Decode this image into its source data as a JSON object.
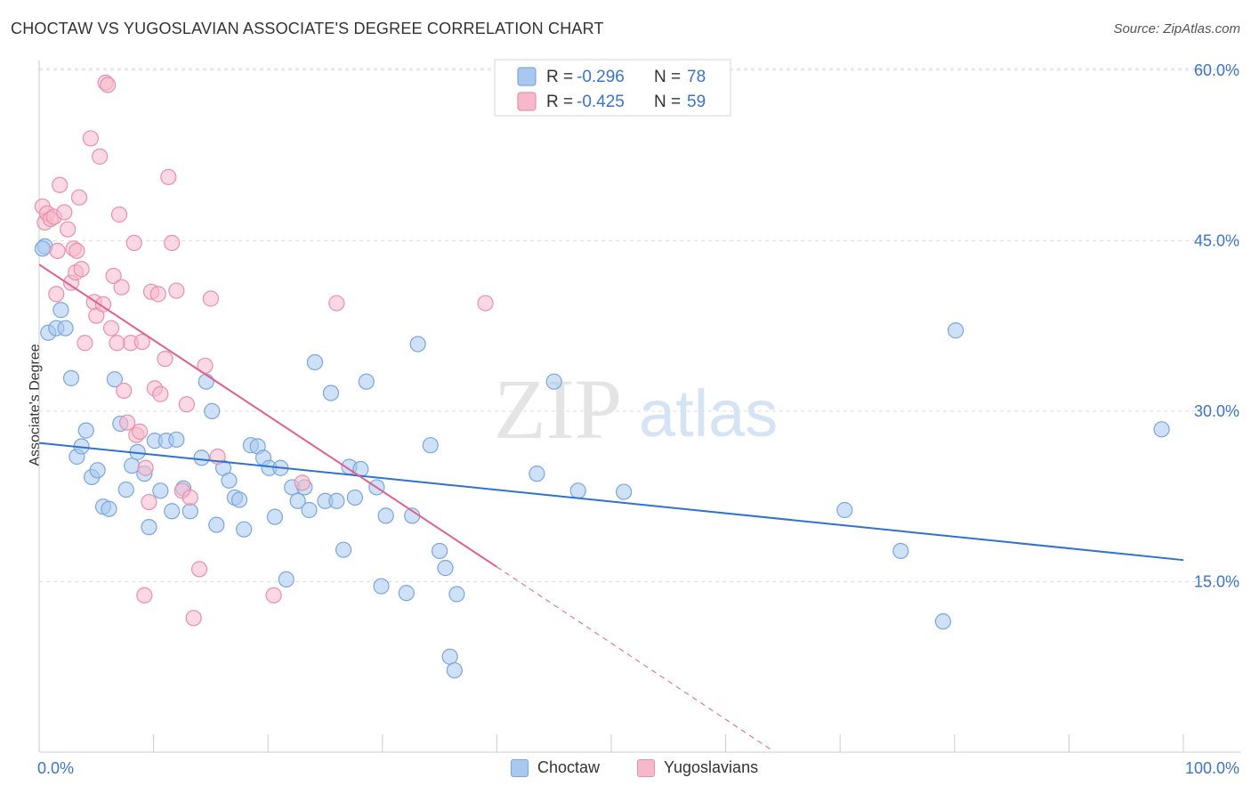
{
  "title": "CHOCTAW VS YUGOSLAVIAN ASSOCIATE'S DEGREE CORRELATION CHART",
  "source": "Source: ZipAtlas.com",
  "watermark": {
    "zip": "ZIP",
    "atlas": "atlas"
  },
  "legend": {
    "r_label": "R =",
    "n_label": "N =",
    "rows": [
      {
        "r": "-0.296",
        "n": "78"
      },
      {
        "r": "-0.425",
        "n": "59"
      }
    ]
  },
  "colors": {
    "choctaw_fill": "#a8c8f0",
    "choctaw_stroke": "#7aa6dc",
    "choctaw_line": "#2f72d0",
    "yugo_fill": "#f8b8cc",
    "yugo_stroke": "#e890ac",
    "yugo_line": "#e0608c",
    "value_blue": "#3a74c8",
    "grid": "#dddddd"
  },
  "chart_data": {
    "type": "scatter",
    "title": "CHOCTAW VS YUGOSLAVIAN ASSOCIATE'S DEGREE CORRELATION CHART",
    "xlabel": "",
    "ylabel": "Associate's Degree",
    "xlim": [
      0,
      100
    ],
    "ylim": [
      0,
      63
    ],
    "x_tick_labels": [
      {
        "value": 0,
        "label": "0.0%"
      },
      {
        "value": 100,
        "label": "100.0%"
      }
    ],
    "y_tick_labels": [
      {
        "value": 15,
        "label": "15.0%"
      },
      {
        "value": 30,
        "label": "30.0%"
      },
      {
        "value": 45,
        "label": "45.0%"
      },
      {
        "value": 60,
        "label": "60.0%"
      }
    ],
    "grid": true,
    "legend_position": "top-center",
    "series": [
      {
        "name": "Choctaw",
        "r": -0.296,
        "n": 78,
        "trend": {
          "x0": 0,
          "y0": 27.2,
          "x1": 100,
          "y1": 16.9,
          "dashed_from": null
        },
        "points": [
          [
            0.5,
            44.5
          ],
          [
            0.8,
            36.9
          ],
          [
            1.5,
            37.3
          ],
          [
            1.9,
            38.9
          ],
          [
            2.3,
            37.3
          ],
          [
            2.8,
            32.9
          ],
          [
            3.3,
            26.0
          ],
          [
            3.7,
            26.9
          ],
          [
            4.1,
            28.3
          ],
          [
            4.6,
            24.2
          ],
          [
            5.1,
            24.8
          ],
          [
            5.6,
            21.6
          ],
          [
            6.1,
            21.4
          ],
          [
            6.6,
            32.8
          ],
          [
            7.1,
            28.9
          ],
          [
            7.6,
            23.1
          ],
          [
            8.1,
            25.2
          ],
          [
            8.6,
            26.4
          ],
          [
            9.2,
            24.5
          ],
          [
            9.6,
            19.8
          ],
          [
            10.1,
            27.4
          ],
          [
            10.6,
            23.0
          ],
          [
            11.1,
            27.4
          ],
          [
            11.6,
            21.2
          ],
          [
            12.0,
            27.5
          ],
          [
            12.6,
            23.2
          ],
          [
            13.2,
            21.2
          ],
          [
            14.2,
            25.9
          ],
          [
            14.6,
            32.6
          ],
          [
            15.1,
            30.0
          ],
          [
            15.5,
            20.0
          ],
          [
            16.1,
            25.0
          ],
          [
            16.6,
            23.9
          ],
          [
            17.1,
            22.4
          ],
          [
            17.5,
            22.2
          ],
          [
            17.9,
            19.6
          ],
          [
            18.5,
            27.0
          ],
          [
            19.1,
            26.9
          ],
          [
            19.6,
            25.9
          ],
          [
            20.1,
            25.0
          ],
          [
            20.6,
            20.7
          ],
          [
            21.1,
            25.0
          ],
          [
            21.6,
            15.2
          ],
          [
            22.1,
            23.3
          ],
          [
            22.6,
            22.1
          ],
          [
            23.2,
            23.3
          ],
          [
            23.6,
            21.3
          ],
          [
            24.1,
            34.3
          ],
          [
            25.0,
            22.1
          ],
          [
            25.5,
            31.6
          ],
          [
            26.0,
            22.1
          ],
          [
            26.6,
            17.8
          ],
          [
            27.1,
            25.1
          ],
          [
            27.6,
            22.4
          ],
          [
            28.1,
            24.9
          ],
          [
            28.6,
            32.6
          ],
          [
            29.5,
            23.3
          ],
          [
            29.9,
            14.6
          ],
          [
            30.3,
            20.8
          ],
          [
            32.1,
            14.0
          ],
          [
            32.6,
            20.8
          ],
          [
            33.1,
            35.9
          ],
          [
            34.2,
            27.0
          ],
          [
            35.0,
            17.7
          ],
          [
            35.5,
            16.2
          ],
          [
            36.5,
            13.9
          ],
          [
            35.9,
            8.4
          ],
          [
            36.3,
            7.2
          ],
          [
            43.5,
            24.5
          ],
          [
            45.0,
            32.6
          ],
          [
            47.1,
            23.0
          ],
          [
            51.1,
            22.9
          ],
          [
            70.4,
            21.3
          ],
          [
            75.3,
            17.7
          ],
          [
            79.0,
            11.5
          ],
          [
            80.1,
            37.1
          ],
          [
            98.1,
            28.4
          ],
          [
            0.3,
            44.3
          ]
        ]
      },
      {
        "name": "Yugoslavians",
        "r": -0.425,
        "n": 59,
        "trend": {
          "x0": 0,
          "y0": 42.9,
          "x1": 40.0,
          "y1": 16.3,
          "dashed_to": {
            "x": 64.0,
            "y": 0.2
          }
        },
        "points": [
          [
            0.3,
            48.0
          ],
          [
            0.5,
            46.6
          ],
          [
            0.7,
            47.4
          ],
          [
            1.0,
            46.9
          ],
          [
            1.3,
            47.1
          ],
          [
            1.5,
            40.3
          ],
          [
            1.8,
            49.9
          ],
          [
            2.2,
            47.5
          ],
          [
            2.5,
            46.0
          ],
          [
            2.8,
            41.3
          ],
          [
            3.0,
            44.3
          ],
          [
            3.2,
            42.2
          ],
          [
            3.5,
            48.8
          ],
          [
            3.7,
            42.5
          ],
          [
            4.0,
            36.0
          ],
          [
            4.5,
            54.0
          ],
          [
            4.8,
            39.6
          ],
          [
            5.0,
            38.4
          ],
          [
            5.3,
            52.4
          ],
          [
            5.6,
            39.4
          ],
          [
            5.8,
            58.9
          ],
          [
            6.0,
            58.7
          ],
          [
            6.3,
            37.3
          ],
          [
            6.5,
            41.9
          ],
          [
            7.0,
            47.3
          ],
          [
            7.2,
            40.9
          ],
          [
            7.4,
            31.8
          ],
          [
            7.7,
            29.0
          ],
          [
            8.0,
            36.0
          ],
          [
            8.3,
            44.8
          ],
          [
            8.5,
            27.9
          ],
          [
            8.8,
            28.2
          ],
          [
            9.0,
            36.1
          ],
          [
            9.3,
            25.0
          ],
          [
            9.6,
            22.0
          ],
          [
            9.8,
            40.5
          ],
          [
            10.1,
            32.0
          ],
          [
            10.4,
            40.3
          ],
          [
            10.6,
            31.5
          ],
          [
            11.0,
            34.6
          ],
          [
            11.3,
            50.6
          ],
          [
            11.6,
            44.8
          ],
          [
            12.0,
            40.6
          ],
          [
            12.5,
            23.0
          ],
          [
            12.9,
            30.6
          ],
          [
            13.2,
            22.4
          ],
          [
            13.5,
            11.8
          ],
          [
            14.0,
            16.1
          ],
          [
            14.5,
            34.0
          ],
          [
            15.0,
            39.9
          ],
          [
            15.6,
            26.0
          ],
          [
            20.5,
            13.8
          ],
          [
            23.0,
            23.7
          ],
          [
            26.0,
            39.5
          ],
          [
            39.0,
            39.5
          ],
          [
            1.6,
            44.1
          ],
          [
            3.3,
            44.1
          ],
          [
            6.8,
            36.0
          ],
          [
            9.2,
            13.8
          ]
        ]
      }
    ]
  }
}
